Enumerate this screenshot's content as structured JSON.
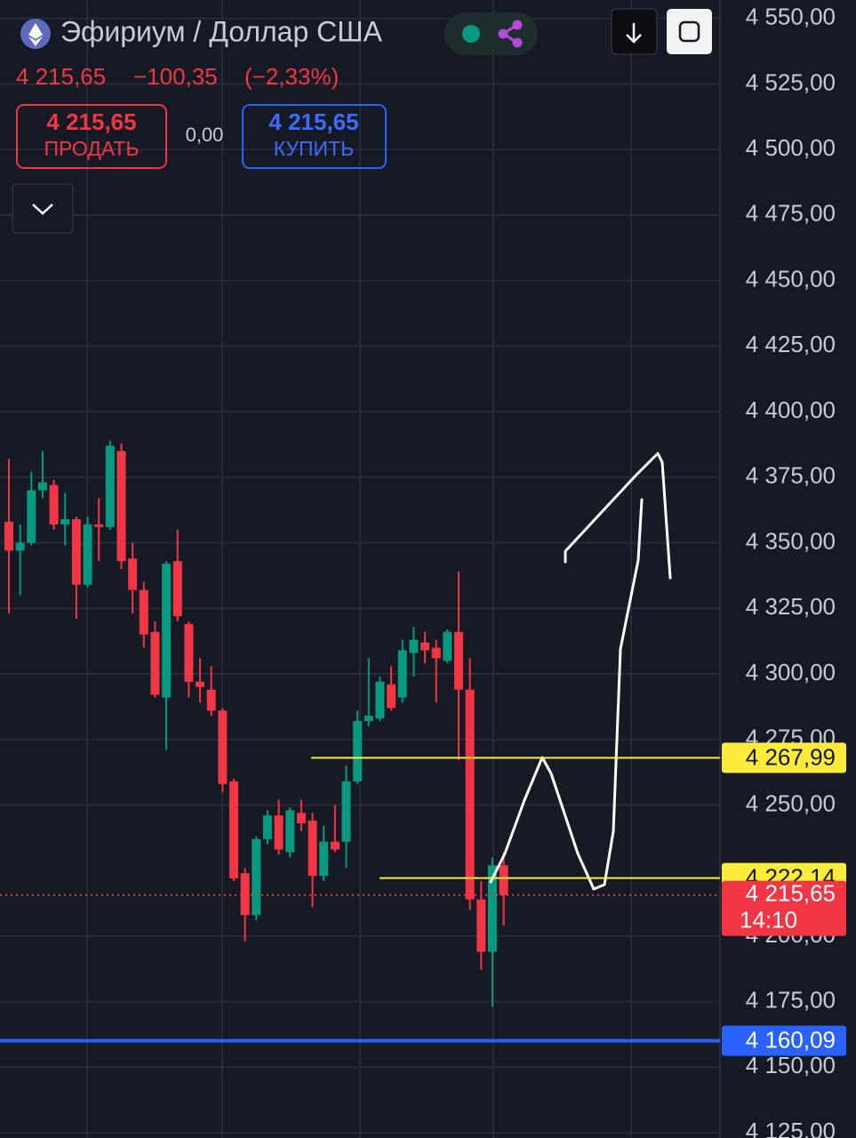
{
  "header": {
    "title": "Эфириум / Доллар США",
    "price": "4 215,65",
    "change": "−100,35",
    "change_pct": "(−2,33%)",
    "sell": {
      "price": "4 215,65",
      "label": "ПРОДАТЬ"
    },
    "spread": "0,00",
    "buy": {
      "price": "4 215,65",
      "label": "КУПИТЬ"
    }
  },
  "chart_data": {
    "type": "candlestick",
    "up_color": "#089981",
    "down_color": "#f23645",
    "ylim": [
      4123,
      4557
    ],
    "yticks": [
      {
        "value": 4550,
        "label": "4 550,00"
      },
      {
        "value": 4525,
        "label": "4 525,00"
      },
      {
        "value": 4500,
        "label": "4 500,00"
      },
      {
        "value": 4475,
        "label": "4 475,00"
      },
      {
        "value": 4450,
        "label": "4 450,00"
      },
      {
        "value": 4425,
        "label": "4 425,00"
      },
      {
        "value": 4400,
        "label": "4 400,00"
      },
      {
        "value": 4375,
        "label": "4 375,00"
      },
      {
        "value": 4350,
        "label": "4 350,00"
      },
      {
        "value": 4325,
        "label": "4 325,00"
      },
      {
        "value": 4300,
        "label": "4 300,00"
      },
      {
        "value": 4275,
        "label": "4 275,00"
      },
      {
        "value": 4250,
        "label": "4 250,00"
      },
      {
        "value": 4200,
        "label": "4 200,00"
      },
      {
        "value": 4175,
        "label": "4 175,00"
      },
      {
        "value": 4150,
        "label": "4 150,00"
      },
      {
        "value": 4125,
        "label": "4 125,00"
      }
    ],
    "grid": true,
    "open": [
      4358,
      4347,
      4350,
      4370,
      4372,
      4357,
      4359,
      4334,
      4357,
      4356,
      4385,
      4344,
      4332,
      4316,
      4291,
      4343,
      4319,
      4297,
      4294,
      4286,
      4259,
      4224,
      4208,
      4237,
      4246,
      4232,
      4247,
      4244,
      4223,
      4236,
      4236,
      4259,
      4282,
      4283,
      4296,
      4291,
      4308,
      4312,
      4310,
      4305,
      4316,
      4294,
      4214,
      4194,
      4227
    ],
    "high": [
      4382,
      4357,
      4377,
      4385,
      4374,
      4369,
      4360,
      4360,
      4367,
      4389,
      4388,
      4350,
      4335,
      4320,
      4343,
      4355,
      4320,
      4306,
      4303,
      4287,
      4260,
      4226,
      4238,
      4248,
      4252,
      4249,
      4252,
      4247,
      4242,
      4250,
      4265,
      4286,
      4306,
      4299,
      4303,
      4313,
      4318,
      4316,
      4313,
      4317,
      4339,
      4306,
      4221,
      4230,
      4232
    ],
    "low": [
      4323,
      4330,
      4349,
      4367,
      4355,
      4349,
      4321,
      4333,
      4343,
      4355,
      4340,
      4323,
      4310,
      4291,
      4271,
      4320,
      4291,
      4289,
      4284,
      4255,
      4221,
      4198,
      4206,
      4235,
      4231,
      4230,
      4240,
      4211,
      4221,
      4232,
      4226,
      4258,
      4280,
      4282,
      4286,
      4289,
      4299,
      4304,
      4289,
      4304,
      4267,
      4210,
      4187,
      4173,
      4204
    ],
    "close": [
      4347,
      4350,
      4370,
      4373,
      4357,
      4359,
      4334,
      4357,
      4356,
      4387,
      4343,
      4332,
      4315,
      4292,
      4342,
      4322,
      4297,
      4295,
      4286,
      4258,
      4222,
      4208,
      4237,
      4246,
      4233,
      4248,
      4243,
      4223,
      4236,
      4233,
      4259,
      4282,
      4284,
      4297,
      4287,
      4309,
      4313,
      4309,
      4306,
      4316,
      4294,
      4214,
      4194,
      4227,
      4215.65
    ],
    "levels": [
      {
        "value": 4267.99,
        "label": "4 267,99",
        "color": "#ffeb3b"
      },
      {
        "value": 4222.14,
        "label": "4 222,14",
        "color": "#ffeb3b"
      },
      {
        "value": 4160.09,
        "label": "4 160,09",
        "color": "#2962ff"
      }
    ],
    "last_price": {
      "value": 4215.65,
      "label": "4 215,65",
      "countdown": "14:10",
      "color": "#f23645"
    }
  }
}
